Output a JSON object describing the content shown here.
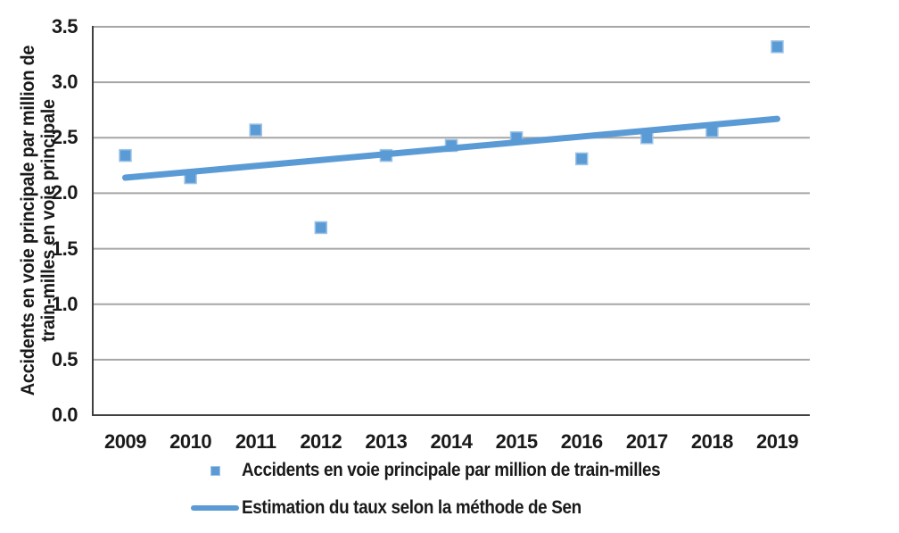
{
  "chart_data": {
    "type": "scatter",
    "title": "",
    "xlabel": "",
    "ylabel_line1": "Accidents en voie principale par million de",
    "ylabel_line2": "train-milles en voie principale",
    "x": [
      2009,
      2010,
      2011,
      2012,
      2013,
      2014,
      2015,
      2016,
      2017,
      2018,
      2019
    ],
    "xticks": [
      "2009",
      "2010",
      "2011",
      "2012",
      "2013",
      "2014",
      "2015",
      "2016",
      "2017",
      "2018",
      "2019"
    ],
    "yticks": [
      "0.0",
      "0.5",
      "1.0",
      "1.5",
      "2.0",
      "2.5",
      "3.0",
      "3.5"
    ],
    "ylim": [
      0,
      3.5
    ],
    "grid": true,
    "legend_position": "bottom",
    "series": [
      {
        "name": "Accidents en voie principale par million de train-milles",
        "type": "scatter",
        "marker": "square",
        "color": "#5B9BD5",
        "marker_edge_color": "#9DC3E6",
        "values": [
          2.34,
          2.14,
          2.57,
          1.69,
          2.34,
          2.43,
          2.5,
          2.31,
          2.5,
          2.56,
          3.32
        ]
      },
      {
        "name": "Estimation du taux selon la méthode de Sen",
        "type": "trendline",
        "color": "#5B9BD5",
        "start": {
          "x": 2009,
          "y": 2.14
        },
        "end": {
          "x": 2019,
          "y": 2.67
        }
      }
    ],
    "colors": {
      "gridline": "#A6A6A6",
      "axis": "#404040",
      "text": "#1A1A1A",
      "background": "#FFFFFF"
    }
  }
}
